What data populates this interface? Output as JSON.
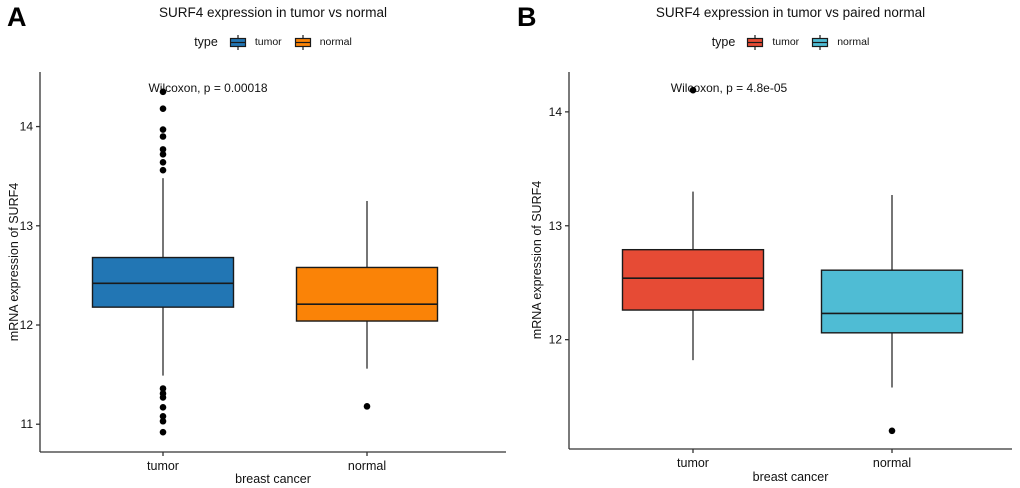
{
  "chart_data": [
    {
      "type": "boxplot",
      "panel_label": "A",
      "title": "SURF4 expression in tumor vs normal",
      "legend": {
        "title": "type",
        "position": "top",
        "items": [
          {
            "name": "tumor",
            "color": "#2276B4"
          },
          {
            "name": "normal",
            "color": "#FA8307"
          }
        ]
      },
      "annotation": "Wilcoxon, p = 0.00018",
      "xlabel": "breast cancer",
      "ylabel": "mRNA expression of SURF4",
      "categories": [
        "tumor",
        "normal"
      ],
      "yticks": [
        11,
        12,
        13,
        14
      ],
      "ylim": [
        10.72,
        14.55
      ],
      "grid": false,
      "boxes": [
        {
          "category": "tumor",
          "color": "#2276B4",
          "whisker_low": 11.49,
          "q1": 12.18,
          "median": 12.42,
          "q3": 12.68,
          "whisker_high": 13.48,
          "outliers": [
            14.35,
            14.18,
            13.97,
            13.9,
            13.77,
            13.72,
            13.64,
            13.56,
            11.36,
            11.31,
            11.27,
            11.17,
            11.08,
            11.03,
            10.92
          ]
        },
        {
          "category": "normal",
          "color": "#FA8307",
          "whisker_low": 11.56,
          "q1": 12.04,
          "median": 12.21,
          "q3": 12.58,
          "whisker_high": 13.25,
          "outliers": [
            11.18
          ]
        }
      ]
    },
    {
      "type": "boxplot",
      "panel_label": "B",
      "title": "SURF4 expression in tumor vs paired normal",
      "legend": {
        "title": "type",
        "position": "top",
        "items": [
          {
            "name": "tumor",
            "color": "#E64B35"
          },
          {
            "name": "normal",
            "color": "#4FBCD4"
          }
        ]
      },
      "annotation": "Wilcoxon, p = 4.8e-05",
      "xlabel": "breast cancer",
      "ylabel": "mRNA expression of SURF4",
      "categories": [
        "tumor",
        "normal"
      ],
      "yticks": [
        12,
        13,
        14
      ],
      "ylim": [
        11.04,
        14.35
      ],
      "grid": false,
      "boxes": [
        {
          "category": "tumor",
          "color": "#E64B35",
          "whisker_low": 11.82,
          "q1": 12.26,
          "median": 12.54,
          "q3": 12.79,
          "whisker_high": 13.3,
          "outliers": [
            14.19
          ]
        },
        {
          "category": "normal",
          "color": "#4FBCD4",
          "whisker_low": 11.58,
          "q1": 12.06,
          "median": 12.23,
          "q3": 12.61,
          "whisker_high": 13.27,
          "outliers": [
            11.2
          ]
        }
      ]
    }
  ],
  "style": {
    "axis_color": "#333333",
    "box_border_color": "#1a1a1a",
    "outlier_color": "#000000",
    "background": "#ffffff"
  }
}
